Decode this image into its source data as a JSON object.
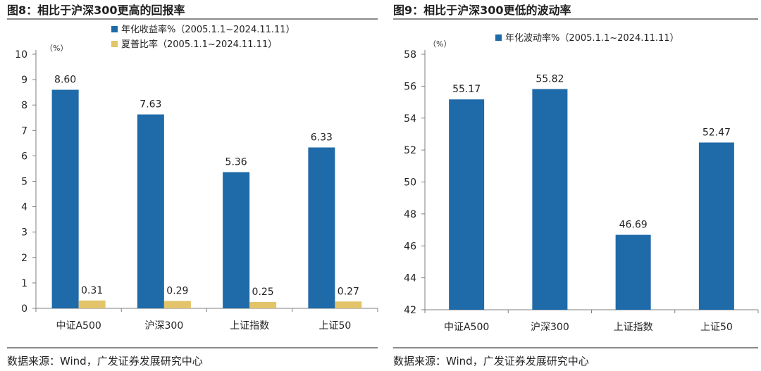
{
  "figures": [
    {
      "title": "图8：相比于沪深300更高的回报率",
      "source": "数据来源：Wind，广发证券发展研究中心"
    },
    {
      "title": "图9：相比于沪深300更低的波动率",
      "source": "数据来源：Wind，广发证券发展研究中心"
    }
  ],
  "chart_data": [
    {
      "type": "bar",
      "title": "",
      "ylabel": "（%）",
      "xlabel": "",
      "categories": [
        "中证A500",
        "沪深300",
        "上证指数",
        "上证50"
      ],
      "series": [
        {
          "name": "年化收益率%（2005.1.1~2024.11.11）",
          "color": "#1f6aa8",
          "values": [
            8.6,
            7.63,
            5.36,
            6.33
          ],
          "labels": [
            "8.60",
            "7.63",
            "5.36",
            "6.33"
          ]
        },
        {
          "name": "夏普比率（2005.1.1~2024.11.11）",
          "color": "#e3c46a",
          "values": [
            0.31,
            0.29,
            0.25,
            0.27
          ],
          "labels": [
            "0.31",
            "0.29",
            "0.25",
            "0.27"
          ]
        }
      ],
      "ylim": [
        0,
        10
      ],
      "yticks": [
        0,
        1,
        2,
        3,
        4,
        5,
        6,
        7,
        8,
        9,
        10
      ],
      "grid": false,
      "legend": "top-center"
    },
    {
      "type": "bar",
      "title": "",
      "ylabel": "（%）",
      "xlabel": "",
      "categories": [
        "中证A500",
        "沪深300",
        "上证指数",
        "上证50"
      ],
      "series": [
        {
          "name": "年化波动率%（2005.1.1~2024.11.11）",
          "color": "#1f6aa8",
          "values": [
            55.17,
            55.82,
            46.69,
            52.47
          ],
          "labels": [
            "55.17",
            "55.82",
            "46.69",
            "52.47"
          ]
        }
      ],
      "ylim": [
        42,
        58
      ],
      "yticks": [
        42,
        44,
        46,
        48,
        50,
        52,
        54,
        56,
        58
      ],
      "grid": false,
      "legend": "top-center"
    }
  ]
}
